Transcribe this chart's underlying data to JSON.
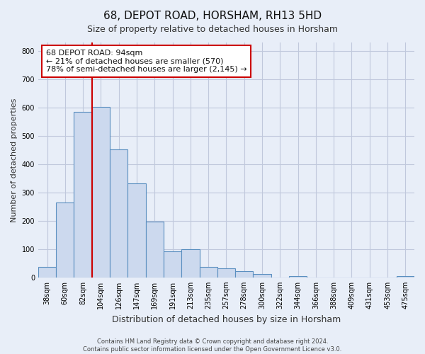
{
  "title": "68, DEPOT ROAD, HORSHAM, RH13 5HD",
  "subtitle": "Size of property relative to detached houses in Horsham",
  "xlabel": "Distribution of detached houses by size in Horsham",
  "ylabel": "Number of detached properties",
  "bar_labels": [
    "38sqm",
    "60sqm",
    "82sqm",
    "104sqm",
    "126sqm",
    "147sqm",
    "169sqm",
    "191sqm",
    "213sqm",
    "235sqm",
    "257sqm",
    "278sqm",
    "300sqm",
    "322sqm",
    "344sqm",
    "366sqm",
    "388sqm",
    "409sqm",
    "431sqm",
    "453sqm",
    "475sqm"
  ],
  "bar_values": [
    38,
    265,
    585,
    602,
    453,
    333,
    197,
    92,
    100,
    38,
    33,
    22,
    12,
    0,
    5,
    0,
    0,
    0,
    0,
    0,
    5
  ],
  "bar_color": "#ccd9ee",
  "bar_edge_color": "#5a8fc0",
  "vline_color": "#cc0000",
  "vline_x": 3.0,
  "ylim": [
    0,
    830
  ],
  "yticks": [
    0,
    100,
    200,
    300,
    400,
    500,
    600,
    700,
    800
  ],
  "annotation_line1": "68 DEPOT ROAD: 94sqm",
  "annotation_line2": "← 21% of detached houses are smaller (570)",
  "annotation_line3": "78% of semi-detached houses are larger (2,145) →",
  "footer_line1": "Contains HM Land Registry data © Crown copyright and database right 2024.",
  "footer_line2": "Contains public sector information licensed under the Open Government Licence v3.0.",
  "bg_color": "#e8eef8",
  "plot_bg_color": "#e8eef8",
  "grid_color": "#c0c8dc",
  "title_fontsize": 11,
  "subtitle_fontsize": 9,
  "xlabel_fontsize": 9,
  "ylabel_fontsize": 8,
  "tick_fontsize": 7,
  "annot_fontsize": 8,
  "footer_fontsize": 6
}
